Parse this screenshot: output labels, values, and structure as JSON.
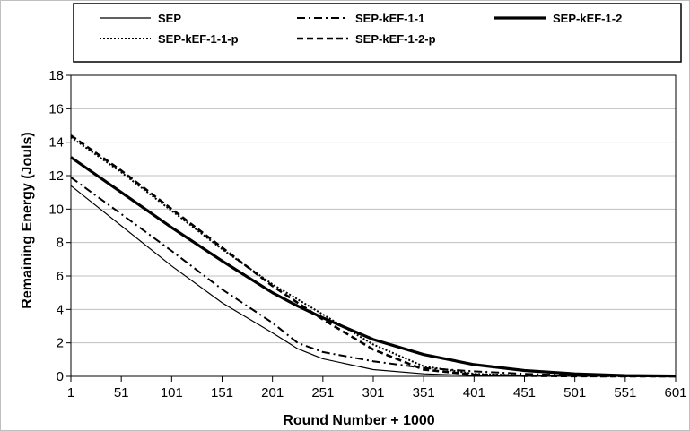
{
  "chart_data": {
    "type": "line",
    "xlabel": "Round Number + 1000",
    "ylabel": "Remaining Energy (Jouls)",
    "xlim": [
      1,
      601
    ],
    "ylim": [
      0,
      18
    ],
    "x_ticks": [
      1,
      51,
      101,
      151,
      201,
      251,
      301,
      351,
      401,
      451,
      501,
      551,
      601
    ],
    "y_ticks": [
      0,
      2,
      4,
      6,
      8,
      10,
      12,
      14,
      16,
      18
    ],
    "grid": "horizontal",
    "legend_position": "top",
    "x": [
      1,
      51,
      101,
      151,
      201,
      226,
      251,
      301,
      351,
      401,
      451,
      501,
      551,
      601
    ],
    "series": [
      {
        "name": "SEP",
        "style": "thin-solid",
        "values": [
          11.4,
          9.0,
          6.6,
          4.4,
          2.6,
          1.65,
          1.05,
          0.4,
          0.15,
          0.05,
          0.02,
          0.01,
          0.0,
          0.0
        ]
      },
      {
        "name": "SEP-kEF-1-1",
        "style": "dash-dot",
        "values": [
          11.9,
          9.7,
          7.5,
          5.2,
          3.2,
          2.0,
          1.45,
          0.9,
          0.5,
          0.3,
          0.15,
          0.05,
          0.02,
          0.0
        ]
      },
      {
        "name": "SEP-kEF-1-2",
        "style": "thick-solid",
        "values": [
          13.1,
          11.0,
          8.9,
          6.9,
          5.0,
          4.2,
          3.5,
          2.2,
          1.3,
          0.7,
          0.35,
          0.15,
          0.05,
          0.02
        ]
      },
      {
        "name": "SEP-kEF-1-1-p",
        "style": "dotted",
        "values": [
          14.3,
          12.2,
          9.9,
          7.6,
          5.5,
          4.6,
          3.7,
          1.9,
          0.6,
          0.15,
          0.05,
          0.02,
          0.0,
          0.0
        ]
      },
      {
        "name": "SEP-kEF-1-2-p",
        "style": "dashed",
        "values": [
          14.4,
          12.3,
          10.0,
          7.7,
          5.4,
          4.4,
          3.4,
          1.6,
          0.4,
          0.1,
          0.03,
          0.01,
          0.0,
          0.0
        ]
      }
    ]
  },
  "colors": {
    "series": "#000000",
    "grid": "#bfbfbf",
    "axis": "#000000",
    "frame": "#bfbfbf"
  }
}
